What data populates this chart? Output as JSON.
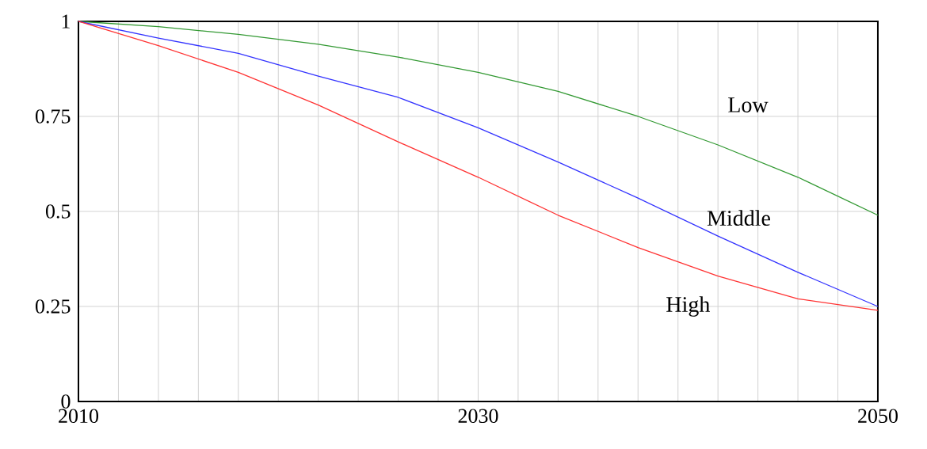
{
  "chart_data": {
    "type": "line",
    "xlim": [
      2010,
      2050
    ],
    "ylim": [
      0,
      1
    ],
    "xticks": [
      2010,
      {
        "value": 2012,
        "label": null
      },
      {
        "value": 2014,
        "label": null
      },
      {
        "value": 2016,
        "label": null
      },
      {
        "value": 2018,
        "label": null
      },
      {
        "value": 2020,
        "label": null
      },
      {
        "value": 2022,
        "label": null
      },
      {
        "value": 2024,
        "label": null
      },
      {
        "value": 2026,
        "label": null
      },
      {
        "value": 2028,
        "label": null
      },
      2030,
      {
        "value": 2032,
        "label": null
      },
      {
        "value": 2034,
        "label": null
      },
      {
        "value": 2036,
        "label": null
      },
      {
        "value": 2038,
        "label": null
      },
      {
        "value": 2040,
        "label": null
      },
      {
        "value": 2042,
        "label": null
      },
      {
        "value": 2044,
        "label": null
      },
      {
        "value": 2046,
        "label": null
      },
      {
        "value": 2048,
        "label": null
      },
      2050
    ],
    "yticks": [
      0,
      0.25,
      0.5,
      0.75,
      1
    ],
    "grid": true,
    "x": [
      2010,
      2014,
      2018,
      2022,
      2026,
      2030,
      2034,
      2038,
      2042,
      2046,
      2050
    ],
    "series": [
      {
        "name": "Low",
        "color": "#339933",
        "values": [
          1.0,
          0.986,
          0.966,
          0.94,
          0.906,
          0.866,
          0.816,
          0.75,
          0.675,
          0.59,
          0.49
        ]
      },
      {
        "name": "Middle",
        "color": "#3333ff",
        "values": [
          1.0,
          0.956,
          0.916,
          0.856,
          0.8,
          0.72,
          0.63,
          0.535,
          0.435,
          0.34,
          0.25
        ]
      },
      {
        "name": "High",
        "color": "#ff3333",
        "values": [
          1.0,
          0.936,
          0.866,
          0.78,
          0.683,
          0.59,
          0.49,
          0.405,
          0.33,
          0.27,
          0.24
        ]
      }
    ]
  }
}
